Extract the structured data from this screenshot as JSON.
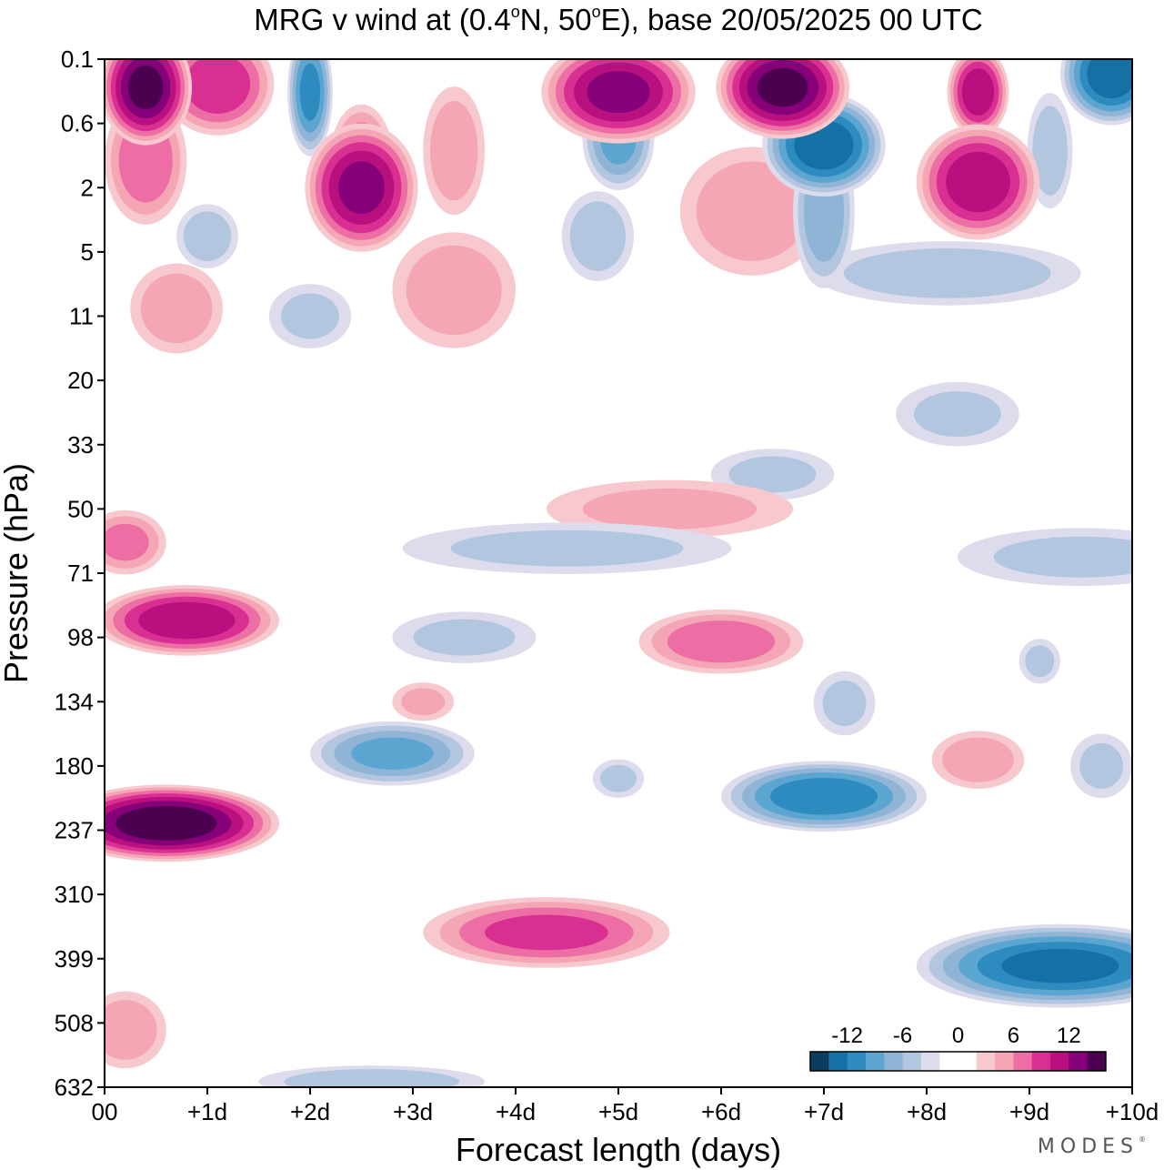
{
  "chart_data": {
    "type": "heatmap",
    "title_main": "MRG v wind at (0.4",
    "title_deg": "o",
    "title_mid": "N, 50",
    "title_deg2": "o",
    "title_end": "E),  base 20/05/2025  00 UTC",
    "xlabel": "Forecast length (days)",
    "ylabel": "Pressure (hPa)",
    "x_ticks": [
      "00",
      "+1d",
      "+2d",
      "+3d",
      "+4d",
      "+5d",
      "+6d",
      "+7d",
      "+8d",
      "+9d",
      "+10d"
    ],
    "y_ticks": [
      "0.1",
      "0.6",
      "2",
      "5",
      "11",
      "20",
      "33",
      "50",
      "71",
      "98",
      "134",
      "180",
      "237",
      "310",
      "399",
      "508",
      "632"
    ],
    "xlim_days": [
      0,
      10
    ],
    "y_scale": "log",
    "colorbar": {
      "labels": [
        "-12",
        "-6",
        "0",
        "6",
        "12"
      ],
      "colors": [
        "#0b3d5e",
        "#1570a6",
        "#2e8bc0",
        "#5aa6d0",
        "#8fb4d6",
        "#b3c6df",
        "#dcdcec",
        "#ffffff",
        "#ffffff",
        "#f7c9cf",
        "#f4a6b4",
        "#ec6ea5",
        "#d92f92",
        "#b9107f",
        "#86007a",
        "#4b0050"
      ],
      "placement": "bottom-right"
    },
    "levels": [
      {
        "sign": "neg",
        "level": 1,
        "color": "#dcdcec"
      },
      {
        "sign": "neg",
        "level": 2,
        "color": "#b3c6df"
      },
      {
        "sign": "neg",
        "level": 3,
        "color": "#8fb4d6"
      },
      {
        "sign": "neg",
        "level": 4,
        "color": "#5aa6d0"
      },
      {
        "sign": "neg",
        "level": 5,
        "color": "#2e8bc0"
      },
      {
        "sign": "neg",
        "level": 6,
        "color": "#1570a6"
      },
      {
        "sign": "neg",
        "level": 7,
        "color": "#0b3d5e"
      },
      {
        "sign": "pos",
        "level": 1,
        "color": "#f7c9cf"
      },
      {
        "sign": "pos",
        "level": 2,
        "color": "#f4a6b4"
      },
      {
        "sign": "pos",
        "level": 3,
        "color": "#ec6ea5"
      },
      {
        "sign": "pos",
        "level": 4,
        "color": "#d92f92"
      },
      {
        "sign": "pos",
        "level": 5,
        "color": "#b9107f"
      },
      {
        "sign": "pos",
        "level": 6,
        "color": "#86007a"
      },
      {
        "sign": "pos",
        "level": 7,
        "color": "#4b0050"
      }
    ],
    "field_features": [
      {
        "sign": 1,
        "day": 0.4,
        "p": 0.22,
        "amp": 14,
        "w": 0.45,
        "h": 0.9
      },
      {
        "sign": 1,
        "day": 1.1,
        "p": 0.2,
        "amp": 9,
        "w": 0.55,
        "h": 0.8
      },
      {
        "sign": -1,
        "day": 2.0,
        "p": 0.25,
        "amp": 10,
        "w": 0.22,
        "h": 1.0
      },
      {
        "sign": 1,
        "day": 5.0,
        "p": 0.25,
        "amp": 12,
        "w": 0.75,
        "h": 0.8
      },
      {
        "sign": 1,
        "day": 6.6,
        "p": 0.22,
        "amp": 14,
        "w": 0.65,
        "h": 0.8
      },
      {
        "sign": -1,
        "day": 7.0,
        "p": 0.9,
        "amp": 13,
        "w": 0.6,
        "h": 0.8
      },
      {
        "sign": -1,
        "day": 5.0,
        "p": 0.8,
        "amp": 8,
        "w": 0.35,
        "h": 0.8
      },
      {
        "sign": 1,
        "day": 8.5,
        "p": 0.25,
        "amp": 11,
        "w": 0.3,
        "h": 0.7
      },
      {
        "sign": -1,
        "day": 9.8,
        "p": 0.15,
        "amp": 13,
        "w": 0.5,
        "h": 0.8
      },
      {
        "sign": 1,
        "day": 2.5,
        "p": 2.0,
        "amp": 12,
        "w": 0.55,
        "h": 1.0
      },
      {
        "sign": 1,
        "day": 2.5,
        "p": 1.1,
        "amp": 7,
        "w": 0.3,
        "h": 0.8
      },
      {
        "sign": 1,
        "day": 0.4,
        "p": 1.2,
        "amp": 7,
        "w": 0.4,
        "h": 1.0
      },
      {
        "sign": 1,
        "day": 3.4,
        "p": 1.0,
        "amp": 5,
        "w": 0.3,
        "h": 1.0
      },
      {
        "sign": 1,
        "day": 8.5,
        "p": 1.8,
        "amp": 11,
        "w": 0.6,
        "h": 0.9
      },
      {
        "sign": 1,
        "day": 6.3,
        "p": 2.8,
        "amp": 5,
        "w": 0.7,
        "h": 1.0
      },
      {
        "sign": -1,
        "day": 7.0,
        "p": 2.8,
        "amp": 7,
        "w": 0.3,
        "h": 1.2
      },
      {
        "sign": -1,
        "day": 9.2,
        "p": 1.0,
        "amp": 5,
        "w": 0.22,
        "h": 0.9
      },
      {
        "sign": -1,
        "day": 4.8,
        "p": 4.0,
        "amp": 5,
        "w": 0.35,
        "h": 0.7
      },
      {
        "sign": -1,
        "day": 1.0,
        "p": 4.0,
        "amp": 5,
        "w": 0.3,
        "h": 0.5
      },
      {
        "sign": -1,
        "day": 8.2,
        "p": 6.5,
        "amp": 5,
        "w": 1.3,
        "h": 0.5
      },
      {
        "sign": 1,
        "day": 0.7,
        "p": 10.0,
        "amp": 5,
        "w": 0.45,
        "h": 0.7
      },
      {
        "sign": 1,
        "day": 3.4,
        "p": 8.0,
        "amp": 5,
        "w": 0.6,
        "h": 0.9
      },
      {
        "sign": -1,
        "day": 2.0,
        "p": 11.0,
        "amp": 4,
        "w": 0.4,
        "h": 0.5
      },
      {
        "sign": -1,
        "day": 8.3,
        "p": 26.0,
        "amp": 4,
        "w": 0.6,
        "h": 0.5
      },
      {
        "sign": -1,
        "day": 6.5,
        "p": 40.0,
        "amp": 4,
        "w": 0.6,
        "h": 0.4
      },
      {
        "sign": 1,
        "day": 5.5,
        "p": 50.0,
        "amp": 4,
        "w": 1.2,
        "h": 0.45
      },
      {
        "sign": -1,
        "day": 4.5,
        "p": 62.0,
        "amp": 4,
        "w": 1.6,
        "h": 0.4
      },
      {
        "sign": -1,
        "day": 9.5,
        "p": 65.0,
        "amp": 4,
        "w": 1.2,
        "h": 0.45
      },
      {
        "sign": 1,
        "day": 0.8,
        "p": 90.0,
        "amp": 11,
        "w": 0.9,
        "h": 0.55
      },
      {
        "sign": 1,
        "day": 0.2,
        "p": 60.0,
        "amp": 6,
        "w": 0.4,
        "h": 0.5
      },
      {
        "sign": -1,
        "day": 3.5,
        "p": 98.0,
        "amp": 4,
        "w": 0.7,
        "h": 0.4
      },
      {
        "sign": 1,
        "day": 6.0,
        "p": 100.0,
        "amp": 7,
        "w": 0.8,
        "h": 0.5
      },
      {
        "sign": 1,
        "day": 3.1,
        "p": 134.0,
        "amp": 4,
        "w": 0.3,
        "h": 0.3
      },
      {
        "sign": -1,
        "day": 2.8,
        "p": 170.0,
        "amp": 8,
        "w": 0.8,
        "h": 0.5
      },
      {
        "sign": -1,
        "day": 5.0,
        "p": 190.0,
        "amp": 4,
        "w": 0.25,
        "h": 0.3
      },
      {
        "sign": -1,
        "day": 7.0,
        "p": 205.0,
        "amp": 11,
        "w": 1.0,
        "h": 0.55
      },
      {
        "sign": -1,
        "day": 7.2,
        "p": 135.0,
        "amp": 4,
        "w": 0.3,
        "h": 0.5
      },
      {
        "sign": 1,
        "day": 8.5,
        "p": 175.0,
        "amp": 5,
        "w": 0.45,
        "h": 0.45
      },
      {
        "sign": 1,
        "day": 0.6,
        "p": 230.0,
        "amp": 15,
        "w": 1.1,
        "h": 0.6
      },
      {
        "sign": 1,
        "day": 0.2,
        "p": 520.0,
        "amp": 5,
        "w": 0.4,
        "h": 0.6
      },
      {
        "sign": 1,
        "day": 4.3,
        "p": 360.0,
        "amp": 8,
        "w": 1.2,
        "h": 0.55
      },
      {
        "sign": -1,
        "day": 9.3,
        "p": 410.0,
        "amp": 12,
        "w": 1.4,
        "h": 0.65
      },
      {
        "sign": -1,
        "day": 2.6,
        "p": 620.0,
        "amp": 5,
        "w": 1.1,
        "h": 0.25
      },
      {
        "sign": -1,
        "day": 9.7,
        "p": 180.0,
        "amp": 4,
        "w": 0.3,
        "h": 0.5
      },
      {
        "sign": -1,
        "day": 9.1,
        "p": 110.0,
        "amp": 4,
        "w": 0.2,
        "h": 0.35
      }
    ]
  },
  "brand": {
    "name": "MODES",
    "mark": "®"
  }
}
